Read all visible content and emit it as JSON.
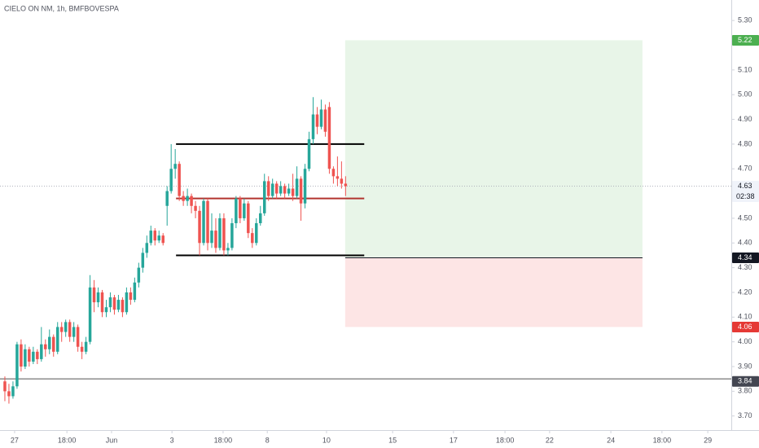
{
  "chart_data": {
    "type": "candlestick",
    "title": "CIELO ON NM, 1h, BMFBOVESPA",
    "up_color": "#26a69a",
    "down_color": "#ef5350",
    "grid": false,
    "xlim": [
      -1.2,
      179.1
    ],
    "ylim": [
      3.643,
      5.383
    ],
    "yticks": [
      {
        "value": 5.3,
        "label": "5.30"
      },
      {
        "value": 5.1,
        "label": "5.10"
      },
      {
        "value": 5.0,
        "label": "5.00"
      },
      {
        "value": 4.9,
        "label": "4.90"
      },
      {
        "value": 4.8,
        "label": "4.80"
      },
      {
        "value": 4.7,
        "label": "4.70"
      },
      {
        "value": 4.5,
        "label": "4.50"
      },
      {
        "value": 4.4,
        "label": "4.40"
      },
      {
        "value": 4.3,
        "label": "4.30"
      },
      {
        "value": 4.2,
        "label": "4.20"
      },
      {
        "value": 4.1,
        "label": "4.10"
      },
      {
        "value": 4.0,
        "label": "4.00"
      },
      {
        "value": 3.9,
        "label": "3.90"
      },
      {
        "value": 3.8,
        "label": "3.80"
      },
      {
        "value": 3.7,
        "label": "3.70"
      }
    ],
    "xticks": [
      {
        "value": 2.4,
        "label": "27"
      },
      {
        "value": 15.3,
        "label": "18:00"
      },
      {
        "value": 26.3,
        "label": "Jun"
      },
      {
        "value": 41.2,
        "label": "3"
      },
      {
        "value": 53.8,
        "label": "18:00"
      },
      {
        "value": 64.7,
        "label": "8"
      },
      {
        "value": 79.3,
        "label": "10"
      },
      {
        "value": 95.6,
        "label": "15"
      },
      {
        "value": 110.6,
        "label": "17"
      },
      {
        "value": 123.3,
        "label": "18:00"
      },
      {
        "value": 134.3,
        "label": "22"
      },
      {
        "value": 149.4,
        "label": "24"
      },
      {
        "value": 162.0,
        "label": "18:00"
      },
      {
        "value": 173.3,
        "label": "29"
      }
    ],
    "open": [
      3.84,
      3.8,
      3.78,
      3.82,
      3.99,
      3.9,
      3.97,
      3.92,
      3.96,
      3.93,
      3.99,
      3.97,
      4.02,
      3.96,
      4.06,
      4.04,
      4.08,
      4.02,
      4.06,
      3.98,
      3.96,
      4.0,
      4.22,
      4.16,
      4.2,
      4.12,
      4.14,
      4.18,
      4.13,
      4.17,
      4.12,
      4.2,
      4.17,
      4.24,
      4.3,
      4.36,
      4.4,
      4.45,
      4.41,
      4.43,
      4.55,
      4.61,
      4.7,
      4.72,
      4.59,
      4.57,
      4.59,
      4.55,
      4.53,
      4.4,
      4.57,
      4.4,
      4.45,
      4.38,
      4.5,
      4.37,
      4.38,
      4.48,
      4.58,
      4.5,
      4.56,
      4.44,
      4.4,
      4.48,
      4.52,
      4.65,
      4.59,
      4.64,
      4.6,
      4.63,
      4.6,
      4.62,
      4.59,
      4.66,
      4.56,
      4.7,
      4.82,
      4.92,
      4.87,
      4.94,
      4.95,
      4.7,
      4.67,
      4.66,
      4.64
    ],
    "high": [
      3.86,
      3.83,
      3.84,
      4.0,
      4.01,
      3.99,
      3.98,
      3.98,
      3.97,
      4.06,
      4.01,
      4.05,
      4.03,
      4.08,
      4.08,
      4.09,
      4.09,
      4.08,
      4.07,
      4.0,
      4.02,
      4.27,
      4.25,
      4.22,
      4.21,
      4.17,
      4.2,
      4.19,
      4.19,
      4.18,
      4.22,
      4.22,
      4.26,
      4.32,
      4.38,
      4.43,
      4.47,
      4.46,
      4.45,
      4.44,
      4.63,
      4.8,
      4.78,
      4.73,
      4.61,
      4.62,
      4.6,
      4.57,
      4.55,
      4.58,
      4.58,
      4.52,
      4.5,
      4.52,
      4.52,
      4.4,
      4.5,
      4.59,
      4.59,
      4.58,
      4.57,
      4.46,
      4.5,
      4.55,
      4.68,
      4.67,
      4.66,
      4.65,
      4.65,
      4.64,
      4.64,
      4.68,
      4.71,
      4.67,
      4.72,
      4.85,
      4.99,
      4.95,
      4.98,
      4.96,
      4.97,
      4.71,
      4.75,
      4.73,
      4.67
    ],
    "low": [
      3.76,
      3.75,
      3.77,
      3.81,
      3.88,
      3.89,
      3.9,
      3.91,
      3.91,
      3.92,
      3.94,
      3.95,
      3.94,
      3.95,
      4.0,
      4.02,
      4.0,
      4.0,
      3.96,
      3.93,
      3.95,
      3.99,
      4.12,
      4.14,
      4.1,
      4.1,
      4.12,
      4.11,
      4.12,
      4.1,
      4.11,
      4.15,
      4.16,
      4.22,
      4.28,
      4.34,
      4.39,
      4.39,
      4.4,
      4.39,
      4.47,
      4.6,
      4.66,
      4.57,
      4.55,
      4.55,
      4.52,
      4.5,
      4.35,
      4.39,
      4.37,
      4.38,
      4.36,
      4.37,
      4.35,
      4.35,
      4.37,
      4.46,
      4.48,
      4.49,
      4.42,
      4.38,
      4.39,
      4.47,
      4.51,
      4.57,
      4.58,
      4.58,
      4.59,
      4.58,
      4.59,
      4.57,
      4.58,
      4.49,
      4.54,
      4.69,
      4.8,
      4.84,
      4.86,
      4.83,
      4.68,
      4.64,
      4.63,
      4.62,
      4.59
    ],
    "close": [
      3.8,
      3.78,
      3.82,
      3.99,
      3.9,
      3.97,
      3.92,
      3.96,
      3.93,
      3.99,
      3.97,
      4.02,
      3.96,
      4.06,
      4.04,
      4.08,
      4.02,
      4.06,
      3.98,
      3.96,
      4.0,
      4.22,
      4.16,
      4.2,
      4.12,
      4.14,
      4.18,
      4.13,
      4.17,
      4.12,
      4.2,
      4.17,
      4.24,
      4.3,
      4.36,
      4.4,
      4.45,
      4.41,
      4.43,
      4.4,
      4.61,
      4.7,
      4.72,
      4.59,
      4.57,
      4.59,
      4.55,
      4.53,
      4.4,
      4.57,
      4.4,
      4.45,
      4.38,
      4.5,
      4.37,
      4.38,
      4.48,
      4.58,
      4.5,
      4.56,
      4.44,
      4.4,
      4.48,
      4.52,
      4.65,
      4.59,
      4.64,
      4.6,
      4.63,
      4.6,
      4.62,
      4.59,
      4.66,
      4.56,
      4.7,
      4.82,
      4.92,
      4.87,
      4.94,
      4.85,
      4.7,
      4.67,
      4.66,
      4.64,
      4.63
    ],
    "hlines": [
      {
        "value": 4.8,
        "start": 42.2,
        "end": 88.6,
        "color": "#000000"
      },
      {
        "value": 4.35,
        "start": 42.2,
        "end": 88.6,
        "color": "#000000"
      },
      {
        "value": 4.58,
        "start": 42.2,
        "end": 88.6,
        "color": "#b2342f"
      },
      {
        "value": 3.85,
        "start": -1.2,
        "end": 179.1,
        "color": "#555555"
      }
    ],
    "position": {
      "entry": 4.34,
      "target": 5.22,
      "stop": 4.06,
      "start": 83.9,
      "end": 157.2
    },
    "price_labels": [
      {
        "value": 5.22,
        "color": "#4caf50"
      },
      {
        "value": 4.63,
        "color": "#f0f3fa"
      },
      {
        "value": 4.34,
        "color": "#131722"
      },
      {
        "value": 4.06,
        "color": "#e53935"
      },
      {
        "value": 3.84,
        "color": "#434651"
      }
    ],
    "countdown": "02:38"
  }
}
